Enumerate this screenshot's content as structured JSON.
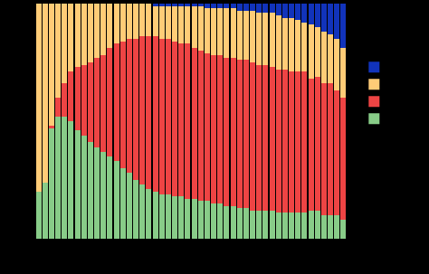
{
  "chart_data": {
    "type": "bar",
    "stacked": true,
    "grid": false,
    "tick_labels": false,
    "legend": "right",
    "categories": [
      null,
      null,
      null,
      null,
      null,
      null,
      null,
      null,
      null,
      null,
      null,
      null,
      null,
      null,
      null,
      null,
      null,
      null,
      null,
      null,
      null,
      null,
      null,
      null,
      null,
      null,
      null,
      null,
      null,
      null,
      null,
      null,
      null,
      null,
      null,
      null,
      null,
      null,
      null,
      null,
      null,
      null,
      null,
      null,
      null,
      null,
      null,
      null
    ],
    "ylim": [
      0,
      100
    ],
    "series": [
      {
        "color": "#88cc88",
        "values": [
          20,
          24,
          47,
          52,
          52,
          50,
          46,
          44,
          41,
          39,
          37,
          35,
          33,
          30,
          28,
          25,
          23,
          21,
          20,
          19,
          19,
          18,
          18,
          17,
          17,
          16,
          16,
          15,
          15,
          14,
          14,
          13,
          13,
          12,
          12,
          12,
          12,
          11,
          11,
          11,
          11,
          11,
          12,
          12,
          10,
          10,
          10,
          8
        ]
      },
      {
        "color": "#ee4444",
        "values": [
          0,
          0,
          1,
          8,
          14,
          21,
          27,
          30,
          34,
          38,
          41,
          46,
          50,
          54,
          57,
          60,
          63,
          65,
          66,
          66,
          66,
          66,
          65,
          66,
          64,
          64,
          63,
          63,
          63,
          63,
          63,
          63,
          63,
          63,
          62,
          62,
          61,
          61,
          61,
          60,
          60,
          60,
          56,
          57,
          56,
          56,
          53,
          52
        ]
      },
      {
        "color": "#ffcc77",
        "values": [
          80,
          76,
          52,
          40,
          34,
          29,
          27,
          26,
          25,
          23,
          22,
          19,
          17,
          16,
          15,
          15,
          14,
          14,
          13,
          14,
          14,
          15,
          16,
          16,
          18,
          19,
          19,
          20,
          20,
          21,
          21,
          21,
          21,
          22,
          22,
          22,
          23,
          23,
          22,
          23,
          22,
          21,
          23,
          21,
          22,
          21,
          22,
          21
        ]
      },
      {
        "color": "#1133bb",
        "values": [
          0,
          0,
          0,
          0,
          0,
          0,
          0,
          0,
          0,
          0,
          0,
          0,
          0,
          0,
          0,
          0,
          0,
          0,
          1,
          1,
          1,
          1,
          1,
          1,
          1,
          1,
          2,
          2,
          2,
          2,
          2,
          3,
          3,
          3,
          4,
          4,
          4,
          5,
          6,
          6,
          7,
          8,
          9,
          10,
          12,
          13,
          15,
          19
        ]
      }
    ]
  }
}
